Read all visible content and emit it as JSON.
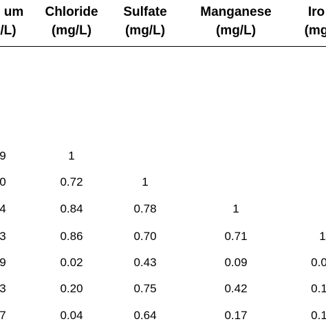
{
  "table": {
    "headers": [
      {
        "line1": "um",
        "line2": "/L)"
      },
      {
        "line1": "Chloride",
        "line2": "(mg/L)"
      },
      {
        "line1": "Sulfate",
        "line2": "(mg/L)"
      },
      {
        "line1": "Manganese",
        "line2": "(mg/L)"
      },
      {
        "line1": "Iro",
        "line2": "(mg"
      }
    ],
    "rows": [
      [
        "9",
        "1",
        "",
        "",
        ""
      ],
      [
        "0",
        "0.72",
        "1",
        "",
        ""
      ],
      [
        "4",
        "0.84",
        "0.78",
        "1",
        ""
      ],
      [
        "3",
        "0.86",
        "0.70",
        "0.71",
        "1"
      ],
      [
        "9",
        "0.02",
        "0.43",
        "0.09",
        "0.0"
      ],
      [
        "3",
        "0.20",
        "0.75",
        "0.42",
        "0.1"
      ],
      [
        "7",
        "0.04",
        "0.64",
        "0.17",
        "0.1"
      ]
    ]
  }
}
